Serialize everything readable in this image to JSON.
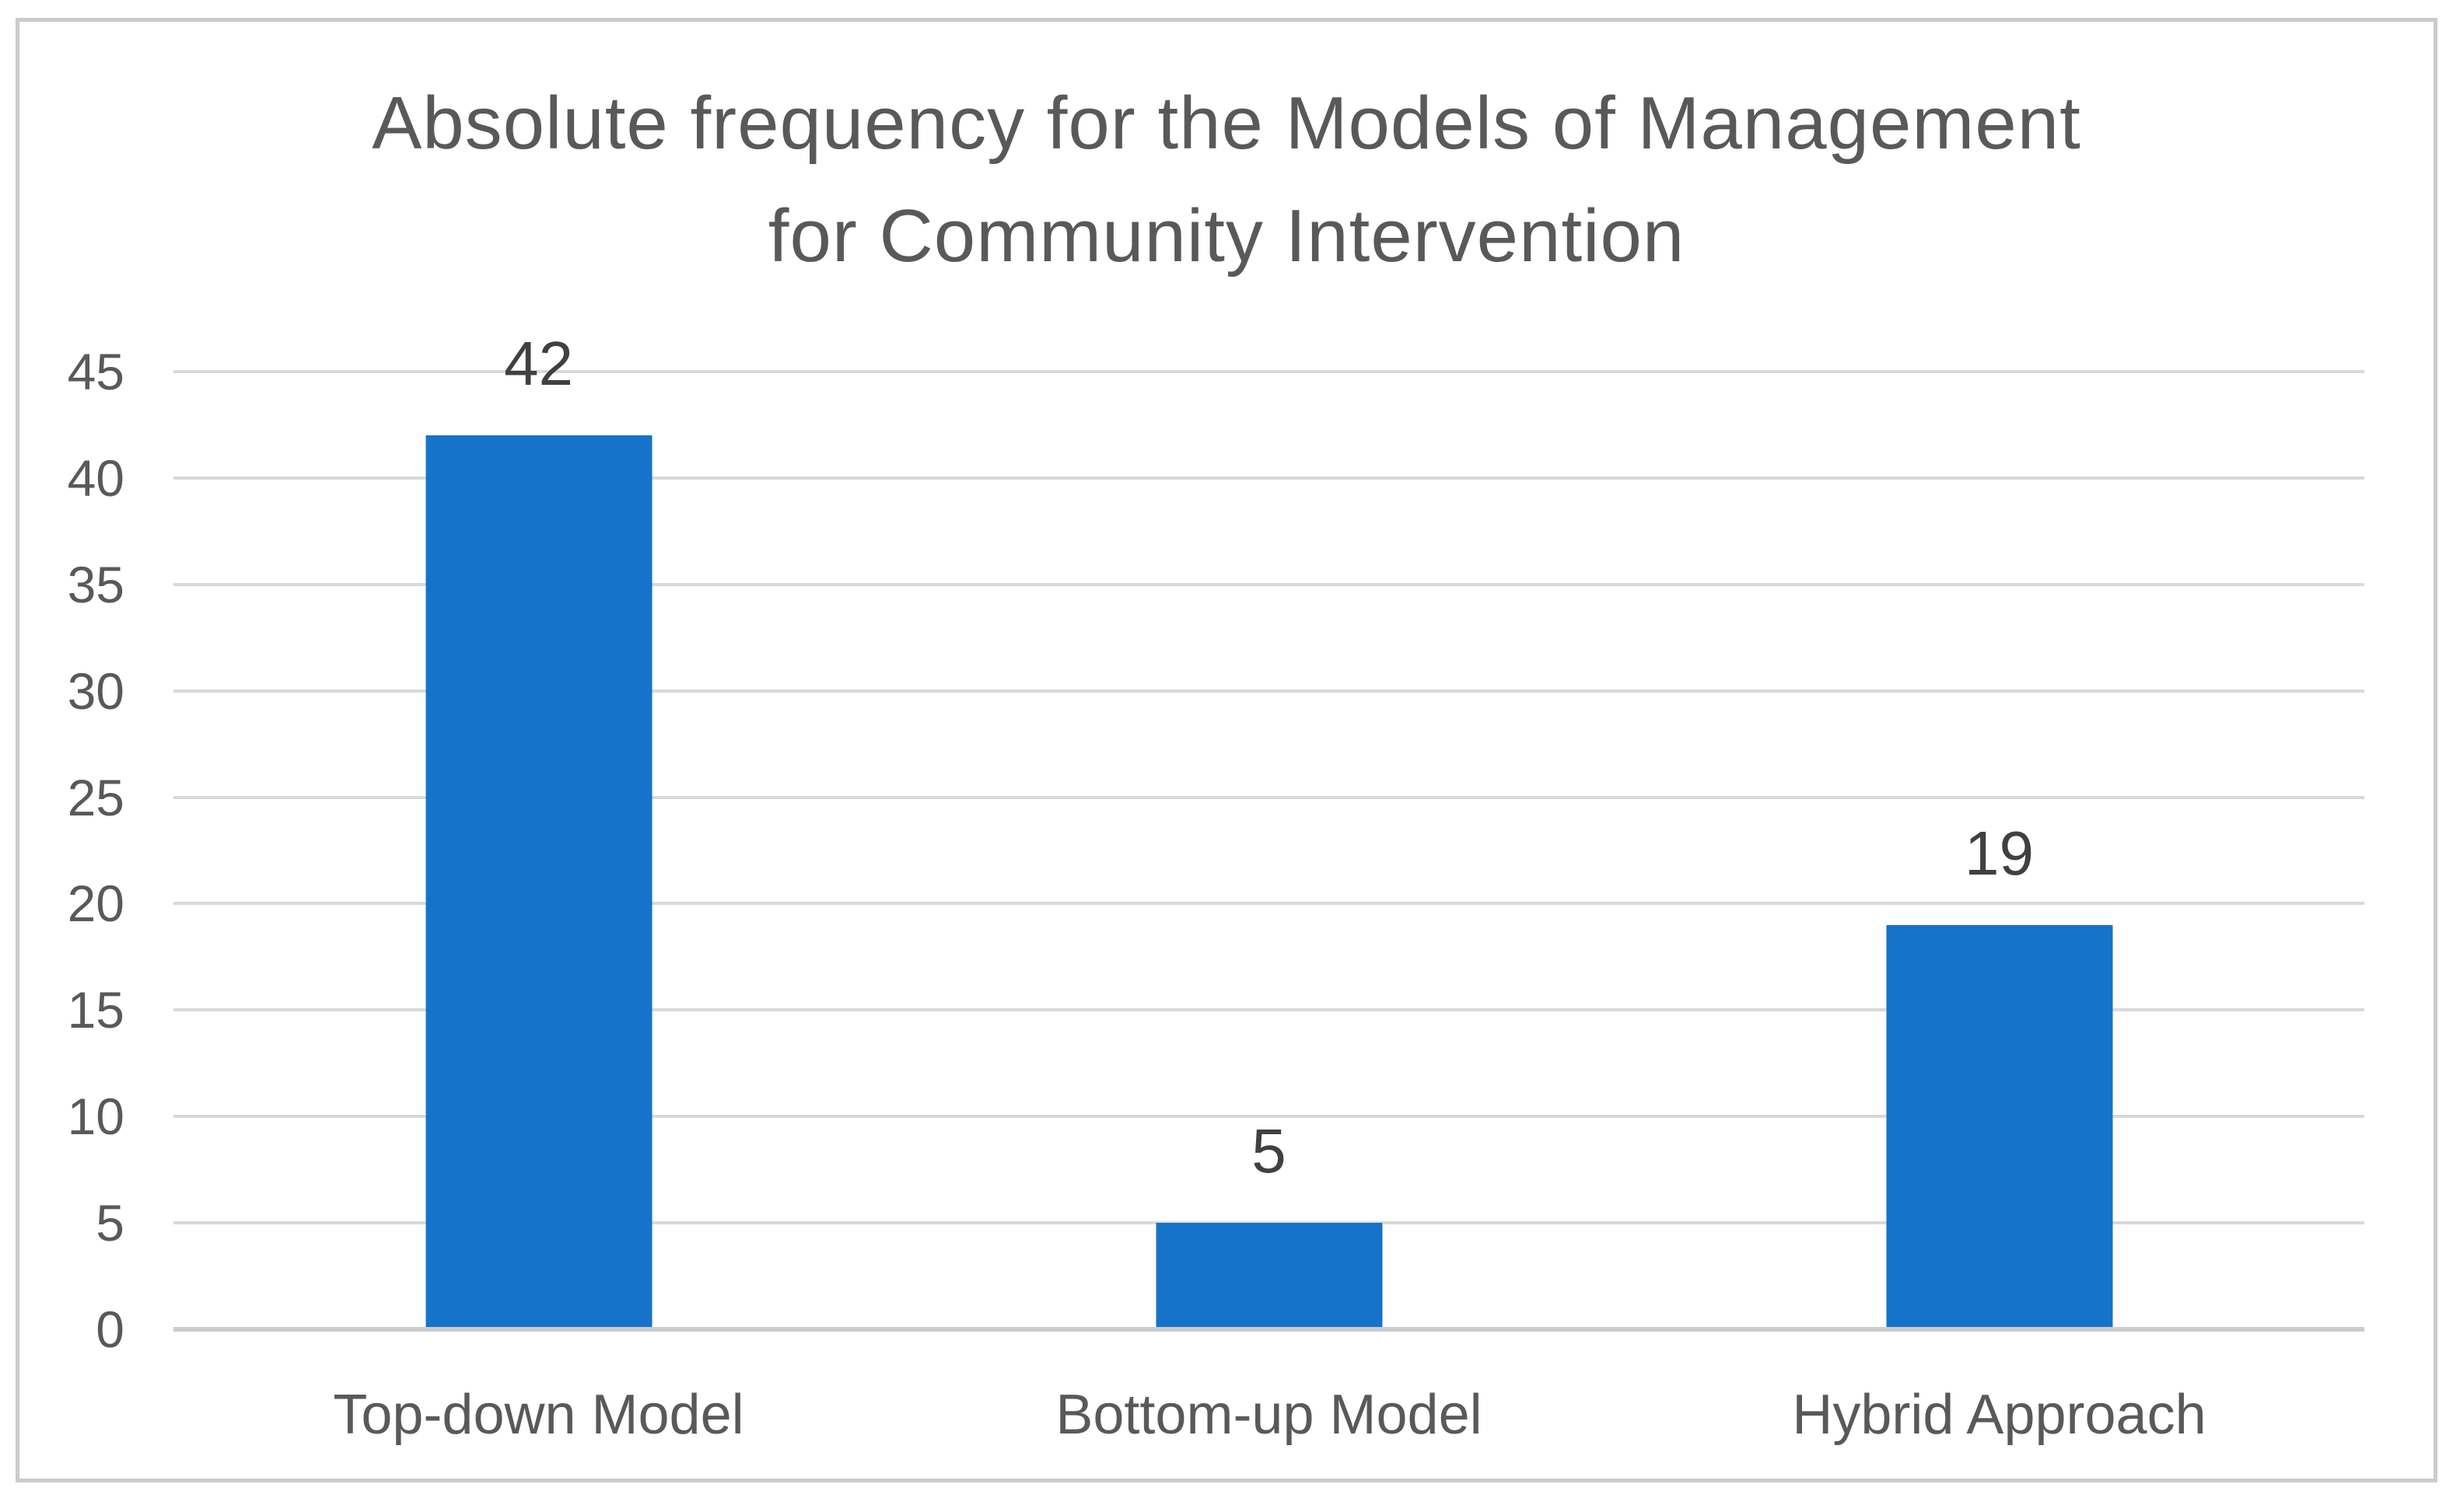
{
  "chart_data": {
    "type": "bar",
    "title": "Absolute frequency for the Models of Management for Community Intervention",
    "title_lines": [
      "Absolute frequency for the Models of Management",
      "for Community Intervention"
    ],
    "categories": [
      "Top-down Model",
      "Bottom-up Model",
      "Hybrid Approach"
    ],
    "values": [
      42,
      5,
      19
    ],
    "data_labels": [
      "42",
      "5",
      "19"
    ],
    "xlabel": "",
    "ylabel": "",
    "ylim": [
      0,
      45
    ],
    "yticks": [
      45,
      40,
      35,
      30,
      25,
      20,
      15,
      10,
      5,
      0
    ],
    "grid": true,
    "legend": false,
    "colors": {
      "bar": "#1772C9",
      "gridline": "#D9D9D9",
      "axis_line": "#CCCCCC",
      "title_text": "#595959",
      "tick_text": "#595959",
      "category_text": "#595959",
      "data_label_text": "#404040",
      "frame_border": "#CBCBCB",
      "background": "#FFFFFF"
    }
  }
}
